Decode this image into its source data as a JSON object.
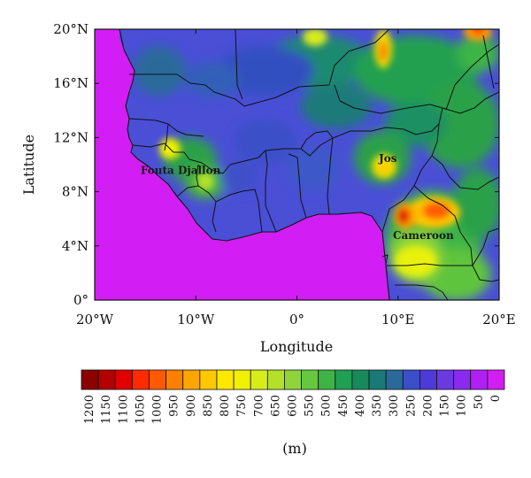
{
  "map": {
    "xlabel": "Longitude",
    "ylabel": "Latitude",
    "lon_range": [
      -20,
      20
    ],
    "lat_range": [
      0,
      20
    ],
    "lon_ticks": [
      {
        "value": -20,
        "label": "20°W"
      },
      {
        "value": -10,
        "label": "10°W"
      },
      {
        "value": 0,
        "label": "0°"
      },
      {
        "value": 10,
        "label": "10°E"
      },
      {
        "value": 20,
        "label": "20°E"
      }
    ],
    "lat_ticks": [
      {
        "value": 0,
        "label": "0°"
      },
      {
        "value": 4,
        "label": "4°N"
      },
      {
        "value": 8,
        "label": "8°N"
      },
      {
        "value": 12,
        "label": "12°N"
      },
      {
        "value": 16,
        "label": "16°N"
      },
      {
        "value": 20,
        "label": "20°N"
      }
    ],
    "places": [
      {
        "name": "Fouta Djallon",
        "lon": -11.5,
        "lat": 9.3
      },
      {
        "name": "Jos",
        "lon": 9.0,
        "lat": 10.2
      },
      {
        "name": "Cameroon",
        "lon": 12.5,
        "lat": 4.5
      }
    ]
  },
  "colorbar": {
    "unit": "(m)",
    "levels": [
      "1200",
      "1150",
      "1100",
      "1050",
      "1000",
      "950",
      "900",
      "850",
      "800",
      "750",
      "700",
      "650",
      "600",
      "550",
      "500",
      "450",
      "400",
      "350",
      "300",
      "250",
      "200",
      "150",
      "100",
      "50",
      "0"
    ],
    "colors": [
      "#8b0000",
      "#b30000",
      "#e00000",
      "#ff2a00",
      "#ff5a00",
      "#ff8000",
      "#ffa500",
      "#ffc800",
      "#ffe800",
      "#f0f000",
      "#d8ec1a",
      "#b4e02a",
      "#8fd43a",
      "#66c83e",
      "#3cb446",
      "#1fa052",
      "#168a5a",
      "#1a7a78",
      "#2a6a9a",
      "#3a4fc8",
      "#4e3ad8",
      "#6a3ae0",
      "#8a2aee",
      "#b020f4",
      "#d21ef4"
    ]
  }
}
